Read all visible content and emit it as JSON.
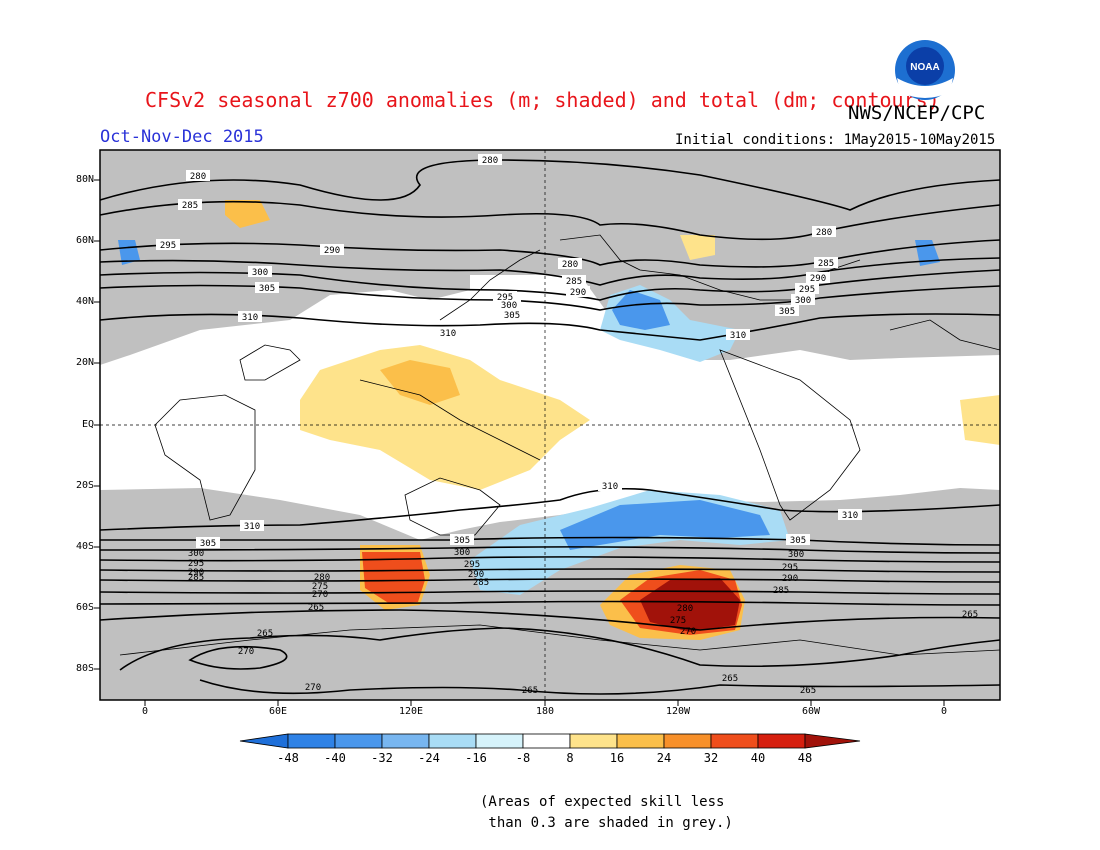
{
  "title": "CFSv2 seasonal z700 anomalies (m; shaded) and total (dm; contours)",
  "agency": "NWS/NCEP/CPC",
  "logo_text": "NOAA",
  "period": "Oct-Nov-Dec 2015",
  "initial_conditions": "Initial conditions: 1May2015-10May2015",
  "lat_labels": [
    "80N",
    "60N",
    "40N",
    "20N",
    "EQ",
    "20S",
    "40S",
    "60S",
    "80S"
  ],
  "lon_labels": [
    "0",
    "60E",
    "120E",
    "180",
    "120W",
    "60W",
    "0"
  ],
  "colorbar": {
    "labels": [
      "-48",
      "-40",
      "-32",
      "-24",
      "-16",
      "-8",
      "8",
      "16",
      "24",
      "32",
      "40",
      "48"
    ],
    "colors": [
      "#1e6fd9",
      "#2f82e6",
      "#4a97ec",
      "#78b6f0",
      "#a9dcf5",
      "#d6f3fb",
      "#ffffff",
      "#fee38b",
      "#fbbf4a",
      "#f7902a",
      "#ef4e1c",
      "#d61f0f",
      "#a1120a"
    ]
  },
  "skill_note": "(Areas of expected skill less\n than 0.3 are shaded in grey.)",
  "contour_labels": [
    "280",
    "285",
    "290",
    "295",
    "300",
    "305",
    "310",
    "265",
    "270",
    "275"
  ],
  "colors": {
    "title": "#e8151b",
    "period": "#2a32d8",
    "skill_grey": "#c0c0c0"
  }
}
